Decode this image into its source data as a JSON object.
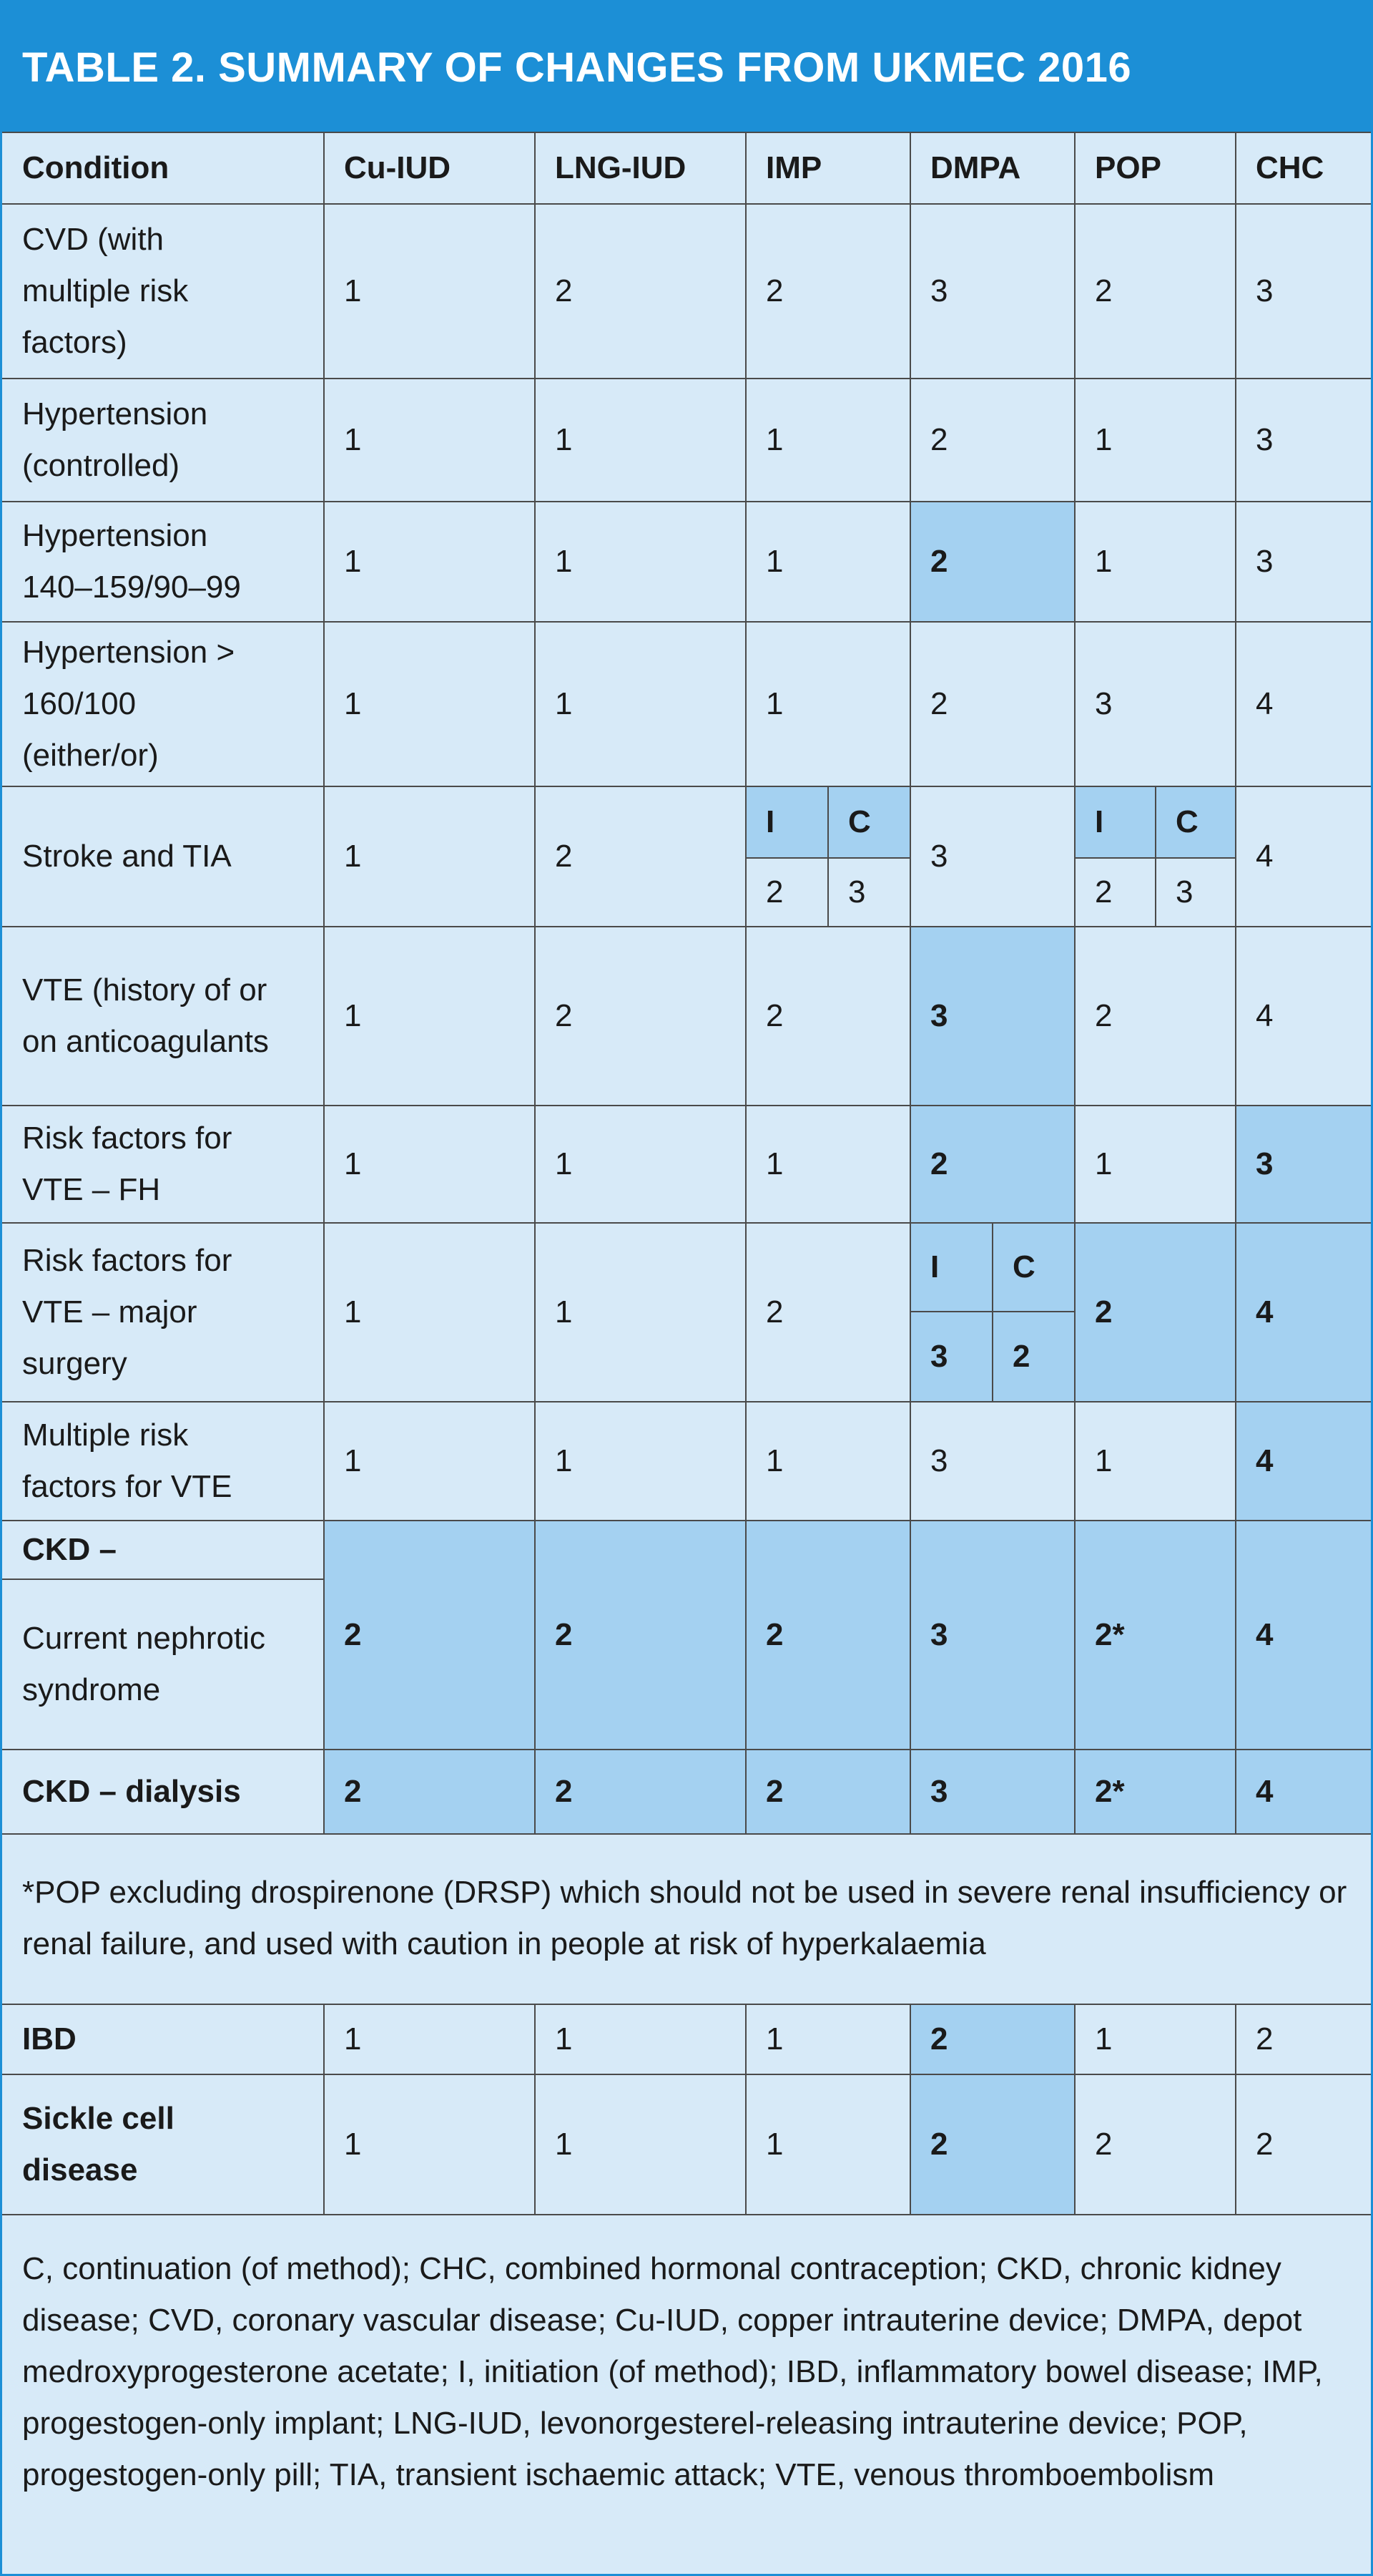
{
  "title": "TABLE 2. SUMMARY OF CHANGES FROM UKMEC 2016",
  "colors": {
    "header_blue": "#1c8fd6",
    "cell_light": "#d7eaf8",
    "cell_highlight": "#a4d1f1",
    "grid_line": "#4a4a4a"
  },
  "header": [
    "Condition",
    "Cu-IUD",
    "LNG-IUD",
    "IMP",
    "DMPA",
    "POP",
    "CHC"
  ],
  "rows": [
    {
      "condition": "CVD (with\nmultiple risk\nfactors)",
      "values": [
        "1",
        "2",
        "2",
        "3",
        "2",
        "3"
      ]
    },
    {
      "condition": "Hypertension\n(controlled)",
      "values": [
        "1",
        "1",
        "1",
        "2",
        "1",
        "3"
      ]
    },
    {
      "condition": "Hypertension\n140–159/90–99",
      "values": [
        "1",
        "1",
        "1",
        "2",
        "1",
        "3"
      ]
    },
    {
      "condition": "Hypertension >\n160/100\n(either/or)",
      "values": [
        "1",
        "1",
        "1",
        "2",
        "3",
        "4"
      ]
    },
    {
      "condition": "Stroke and TIA",
      "values": [
        "1",
        "2",
        "",
        "3",
        "",
        "4"
      ],
      "imp_split": {
        "i_label": "I",
        "c_label": "C",
        "i_value": "2",
        "c_value": "3"
      },
      "pop_split": {
        "i_label": "I",
        "c_label": "C",
        "i_value": "2",
        "c_value": "3"
      }
    },
    {
      "condition": "VTE (history of or\non anticoagulants",
      "values": [
        "1",
        "2",
        "2",
        "3",
        "2",
        "4"
      ]
    },
    {
      "condition": "Risk factors for\nVTE – FH",
      "values": [
        "1",
        "1",
        "1",
        "2",
        "1",
        "3"
      ]
    },
    {
      "condition": "Risk factors for\nVTE – major\nsurgery",
      "values": [
        "1",
        "1",
        "2",
        "",
        "2",
        "4"
      ],
      "dmpa_split": {
        "i_label": "I",
        "c_label": "C",
        "i_value": "3",
        "c_value": "2"
      }
    },
    {
      "condition": "Multiple risk\nfactors for VTE",
      "values": [
        "1",
        "1",
        "1",
        "3",
        "1",
        "4"
      ]
    },
    {
      "condition_top": "CKD –",
      "condition": "Current nephrotic\nsyndrome",
      "values": [
        "2",
        "2",
        "2",
        "3",
        "2*",
        "4"
      ]
    },
    {
      "condition": "CKD – dialysis",
      "values": [
        "2",
        "2",
        "2",
        "3",
        "2*",
        "4"
      ]
    }
  ],
  "footnote": "*POP excluding drospirenone (DRSP) which should not be used in severe renal insufficiency or renal failure, and used with caution in people at risk of hyperkalaemia",
  "rows_after": [
    {
      "condition": "IBD",
      "values": [
        "1",
        "1",
        "1",
        "2",
        "1",
        "2"
      ]
    },
    {
      "condition": "Sickle cell\ndisease",
      "values": [
        "1",
        "1",
        "1",
        "2",
        "2",
        "2"
      ]
    }
  ],
  "abbreviations": "C, continuation (of method); CHC, combined hormonal contraception; CKD, chronic kidney disease; CVD, coronary vascular disease; Cu-IUD, copper intrauterine device; DMPA, depot medroxyprogesterone acetate; I, initiation (of method); IBD, inflammatory bowel disease; IMP, progestogen-only implant; LNG-IUD, levonorgesterel-releasing intrauterine device; POP, progestogen-only pill; TIA, transient ischaemic attack; VTE, venous thromboembolism"
}
